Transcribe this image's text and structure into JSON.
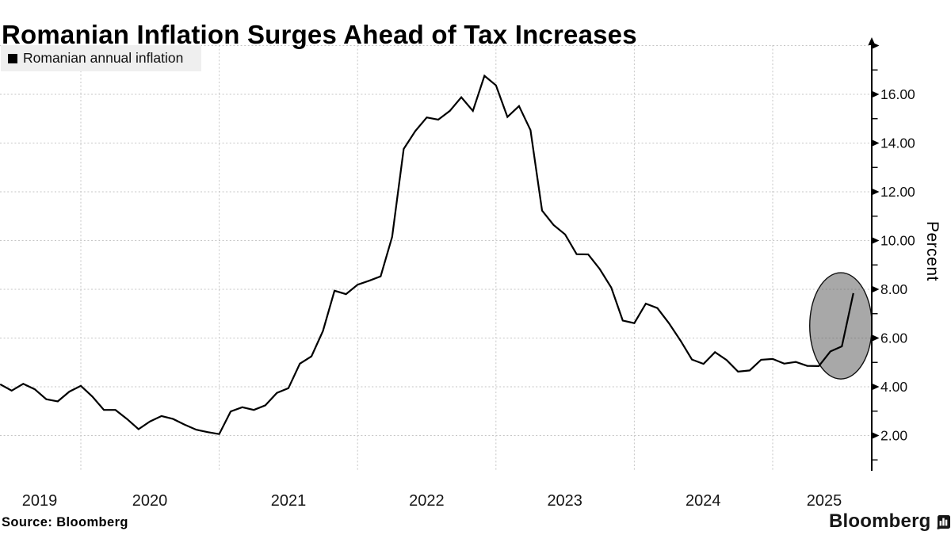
{
  "title": "Romanian Inflation Surges Ahead of Tax Increases",
  "legend": {
    "label": "Romanian annual inflation",
    "marker_color": "#000000"
  },
  "source": "Source: Bloomberg",
  "brand": {
    "wordmark": "Bloomberg",
    "icon": "bloomberg-bars-icon"
  },
  "colors": {
    "line": "#000000",
    "grid": "#c6c6c6",
    "grid_on_ellipse": "#8c8c8c",
    "ellipse_fill": "#a8a8a8",
    "ellipse_stroke": "#111111",
    "axis": "#000000",
    "tick_label": "#111111",
    "year_label": "#161616",
    "legend_bg": "#efefef"
  },
  "chart_data": {
    "type": "line",
    "title": "Romanian Inflation Surges Ahead of Tax Increases",
    "ylabel": "Percent",
    "xlabel": "",
    "grid": "dashed",
    "legend_position": "top-left",
    "ylim": [
      1,
      18
    ],
    "y_ticks": [
      2,
      4,
      6,
      8,
      10,
      12,
      14,
      16
    ],
    "y_tick_labels": [
      "2.00",
      "4.00",
      "6.00",
      "8.00",
      "10.00",
      "12.00",
      "14.00",
      "16.00"
    ],
    "y_minor_ticks": [
      1,
      3,
      5,
      7,
      9,
      11,
      13,
      15,
      17
    ],
    "x_tick_labels": [
      "2019",
      "2020",
      "2021",
      "2022",
      "2023",
      "2024",
      "2025"
    ],
    "series": [
      {
        "name": "Romanian annual inflation",
        "color": "#000000",
        "start_month": "2019-05",
        "frequency": "monthly",
        "values": [
          4.1,
          3.84,
          4.12,
          3.9,
          3.49,
          3.4,
          3.8,
          4.04,
          3.6,
          3.05,
          3.05,
          2.68,
          2.26,
          2.58,
          2.8,
          2.68,
          2.45,
          2.24,
          2.14,
          2.06,
          2.99,
          3.16,
          3.05,
          3.24,
          3.75,
          3.94,
          4.95,
          5.25,
          6.29,
          7.94,
          7.8,
          8.19,
          8.35,
          8.53,
          10.15,
          13.76,
          14.49,
          15.05,
          14.96,
          15.32,
          15.88,
          15.32,
          16.76,
          16.37,
          15.07,
          15.52,
          14.53,
          11.23,
          10.64,
          10.25,
          9.44,
          9.43,
          8.83,
          8.07,
          6.72,
          6.61,
          7.41,
          7.23,
          6.61,
          5.9,
          5.12,
          4.94,
          5.42,
          5.1,
          4.62,
          4.67,
          5.11,
          5.14,
          4.95,
          5.02,
          4.86,
          4.85,
          5.45,
          5.66,
          7.84
        ]
      }
    ],
    "annotation": {
      "type": "ellipse-highlight",
      "center_month": "2025-06",
      "center_value": 6.5,
      "radius_months": 2.7,
      "radius_units": 2.18
    }
  }
}
